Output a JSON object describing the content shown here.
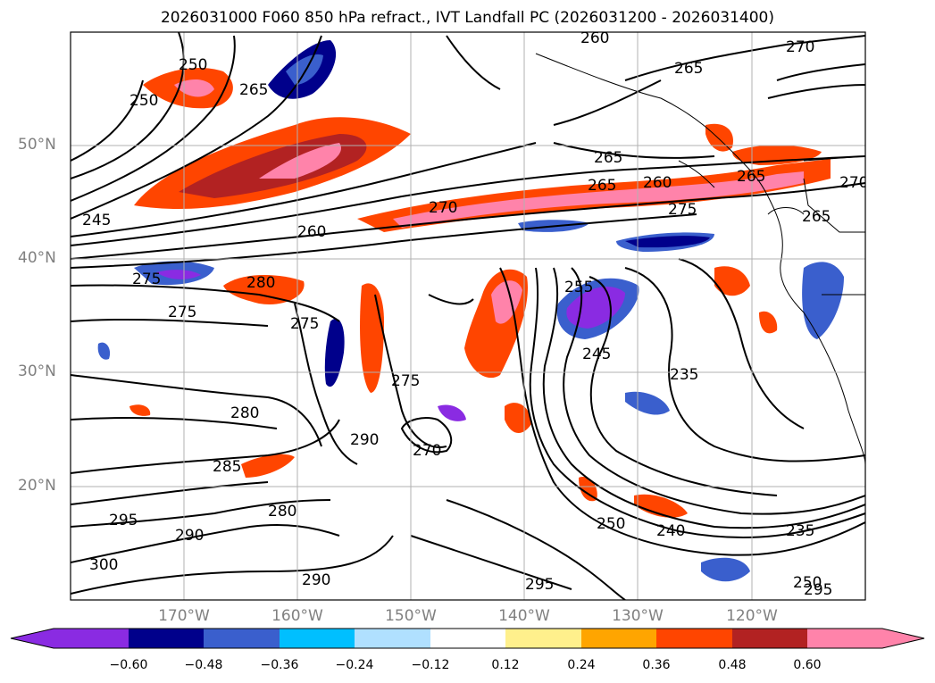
{
  "title": "2026031000 F060 850 hPa refract., IVT Landfall PC (2026031200 - 2026031400)",
  "lat_labels": [
    "50°N",
    "40°N",
    "30°N",
    "20°N"
  ],
  "lon_labels": [
    "170°W",
    "160°W",
    "150°W",
    "140°W",
    "130°W",
    "120°W"
  ],
  "colorbar": {
    "ticks": [
      "−0.60",
      "−0.48",
      "−0.36",
      "−0.24",
      "−0.12",
      "0.12",
      "0.24",
      "0.36",
      "0.48",
      "0.60"
    ],
    "colors": [
      "#8a2be2",
      "#00008b",
      "#3a5fcd",
      "#00bfff",
      "#b0e0ff",
      "#ffffff",
      "#fff08c",
      "#ffa500",
      "#ff4500",
      "#b22222",
      "#ff83aa",
      "#ff83aa"
    ]
  },
  "contour_labels": [
    "270",
    "265",
    "250",
    "265",
    "260",
    "250",
    "245",
    "265",
    "265",
    "260",
    "270",
    "260",
    "275",
    "275",
    "280",
    "275",
    "275",
    "255",
    "245",
    "235",
    "280",
    "275",
    "290",
    "270",
    "285",
    "295",
    "280",
    "290",
    "300",
    "290",
    "250",
    "240",
    "235",
    "295",
    "250",
    "295",
    "265",
    "265",
    "270"
  ]
}
